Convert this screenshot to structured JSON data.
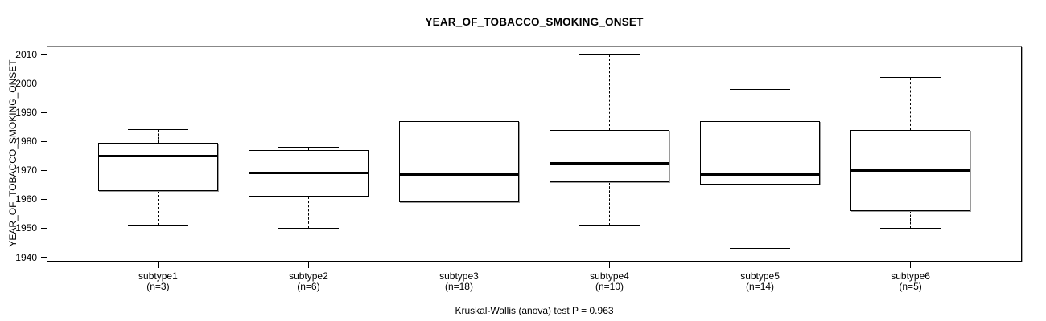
{
  "title": "YEAR_OF_TOBACCO_SMOKING_ONSET",
  "footer": "Kruskal-Wallis (anova) test P = 0.963",
  "y_axis": {
    "label": "YEAR_OF_TOBACCO_SMOKING_ONSET",
    "ticks": [
      1940,
      1950,
      1960,
      1970,
      1980,
      1990,
      2000,
      2010
    ]
  },
  "x_axis": {
    "categories": [
      {
        "label": "subtype1",
        "n_label": "(n=3)"
      },
      {
        "label": "subtype2",
        "n_label": "(n=6)"
      },
      {
        "label": "subtype3",
        "n_label": "(n=18)"
      },
      {
        "label": "subtype4",
        "n_label": "(n=10)"
      },
      {
        "label": "subtype5",
        "n_label": "(n=14)"
      },
      {
        "label": "subtype6",
        "n_label": "(n=5)"
      }
    ]
  },
  "chart_data": {
    "type": "boxplot",
    "title": "YEAR_OF_TOBACCO_SMOKING_ONSET",
    "ylabel": "YEAR_OF_TOBACCO_SMOKING_ONSET",
    "xlabel": "",
    "categories": [
      "subtype1",
      "subtype2",
      "subtype3",
      "subtype4",
      "subtype5",
      "subtype6"
    ],
    "sample_sizes": [
      3,
      6,
      18,
      10,
      14,
      5
    ],
    "series": [
      {
        "name": "subtype1",
        "n": 3,
        "whisker_low": 1951,
        "q1": 1963,
        "median": 1975,
        "q3": 1979.5,
        "whisker_high": 1984
      },
      {
        "name": "subtype2",
        "n": 6,
        "whisker_low": 1950,
        "q1": 1961,
        "median": 1969,
        "q3": 1977,
        "whisker_high": 1978
      },
      {
        "name": "subtype3",
        "n": 18,
        "whisker_low": 1941,
        "q1": 1959,
        "median": 1968.5,
        "q3": 1987,
        "whisker_high": 1996
      },
      {
        "name": "subtype4",
        "n": 10,
        "whisker_low": 1951,
        "q1": 1966,
        "median": 1972.5,
        "q3": 1984,
        "whisker_high": 2010
      },
      {
        "name": "subtype5",
        "n": 14,
        "whisker_low": 1943,
        "q1": 1965,
        "median": 1968.5,
        "q3": 1987,
        "whisker_high": 1998
      },
      {
        "name": "subtype6",
        "n": 5,
        "whisker_low": 1950,
        "q1": 1956,
        "median": 1970,
        "q3": 1984,
        "whisker_high": 2002
      }
    ],
    "yticks": [
      1940,
      1950,
      1960,
      1970,
      1980,
      1990,
      2000,
      2010
    ],
    "ylim": [
      1938.5,
      2013
    ],
    "annotation": "Kruskal-Wallis (anova) test P = 0.963",
    "grid": false,
    "legend": false,
    "colors": {
      "box_stroke": "#000000",
      "box_fill": "#ffffff",
      "frame_top": "#888888",
      "shadow": "#9a9a9a",
      "text": "#000000"
    }
  }
}
